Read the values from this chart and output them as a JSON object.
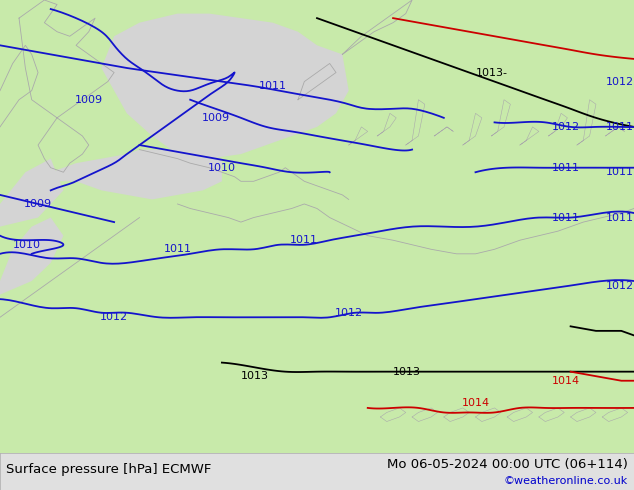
{
  "title_left": "Surface pressure [hPa] ECMWF",
  "title_right": "Mo 06-05-2024 00:00 UTC (06+114)",
  "credit": "©weatheronline.co.uk",
  "bg_color": "#e0e0e0",
  "sea_color": "#d4d4d4",
  "land_color": "#c8eaaa",
  "land_outline": "#aaaaaa",
  "bottom_bar_color": "#e0e0e0",
  "bottom_bar_height": 0.075,
  "title_fontsize": 9.5,
  "credit_fontsize": 8,
  "credit_color": "#0000cc",
  "title_color": "#000000",
  "figsize": [
    6.34,
    4.9
  ],
  "dpi": 100,
  "blue": "#1414cc",
  "black": "#000000",
  "red": "#cc0000"
}
